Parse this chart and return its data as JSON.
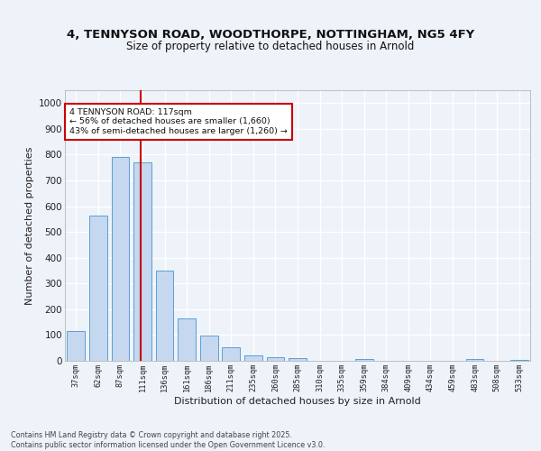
{
  "title1": "4, TENNYSON ROAD, WOODTHORPE, NOTTINGHAM, NG5 4FY",
  "title2": "Size of property relative to detached houses in Arnold",
  "xlabel": "Distribution of detached houses by size in Arnold",
  "ylabel": "Number of detached properties",
  "categories": [
    "37sqm",
    "62sqm",
    "87sqm",
    "111sqm",
    "136sqm",
    "161sqm",
    "186sqm",
    "211sqm",
    "235sqm",
    "260sqm",
    "285sqm",
    "310sqm",
    "335sqm",
    "359sqm",
    "384sqm",
    "409sqm",
    "434sqm",
    "459sqm",
    "483sqm",
    "508sqm",
    "533sqm"
  ],
  "values": [
    115,
    565,
    790,
    770,
    350,
    165,
    97,
    52,
    20,
    13,
    10,
    0,
    0,
    7,
    0,
    0,
    0,
    0,
    8,
    0,
    5
  ],
  "bar_color": "#c5d8f0",
  "bar_edge_color": "#5a9fd4",
  "annotation_line1": "4 TENNYSON ROAD: 117sqm",
  "annotation_line2": "← 56% of detached houses are smaller (1,660)",
  "annotation_line3": "43% of semi-detached houses are larger (1,260) →",
  "annotation_box_color": "#ffffff",
  "annotation_box_edge": "#cc0000",
  "vline_color": "#cc0000",
  "ylim": [
    0,
    1050
  ],
  "yticks": [
    0,
    100,
    200,
    300,
    400,
    500,
    600,
    700,
    800,
    900,
    1000
  ],
  "footer1": "Contains HM Land Registry data © Crown copyright and database right 2025.",
  "footer2": "Contains public sector information licensed under the Open Government Licence v3.0.",
  "bg_color": "#eef2f9",
  "grid_color": "#ffffff"
}
